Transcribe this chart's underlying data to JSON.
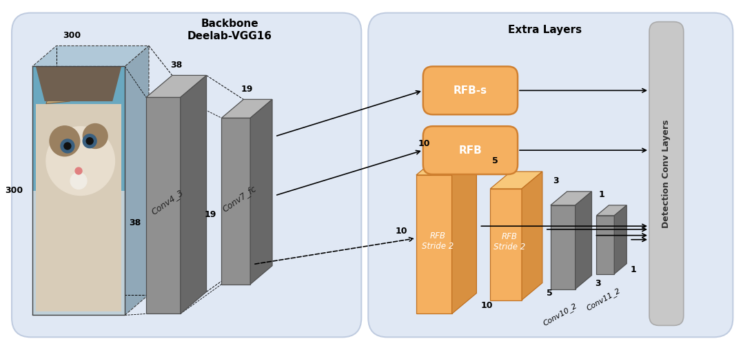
{
  "bg_white": "#ffffff",
  "panel_bg": "#e0e8f4",
  "panel_ec": "#c0cce0",
  "backbone_title": "Backbone\nDeelab-VGG16",
  "extra_title": "Extra Layers",
  "detection_label": "Detection Conv Layers",
  "conv4_label": "Conv4_3",
  "conv7_label": "Conv7_fc",
  "rfb_s_label": "RFB-s",
  "rfb_label": "RFB",
  "rfb_stride2_1_label": "RFB\nStride 2",
  "rfb_stride2_2_label": "RFB\nStride 2",
  "conv10_label": "Conv10_2",
  "conv11_label": "Conv11_2",
  "orange_face": "#f5b060",
  "orange_top": "#f8c87a",
  "orange_side": "#d89040",
  "gray_face": "#909090",
  "gray_top": "#b8b8b8",
  "gray_side": "#686868",
  "det_bar": "#c8c8c8",
  "det_ec": "#aaaaaa",
  "rfb_box": "#f5b060",
  "rfb_ec": "#d08030",
  "dim_300t": "300",
  "dim_300l": "300",
  "dim_38t": "38",
  "dim_38s": "38",
  "dim_19t": "19",
  "dim_19s": "19",
  "dim_10": "10",
  "dim_5": "5",
  "dim_3": "3",
  "dim_1": "1",
  "dim_10s": "10",
  "dim_5s": "5",
  "dim_3s": "3",
  "dim_1s": "1"
}
